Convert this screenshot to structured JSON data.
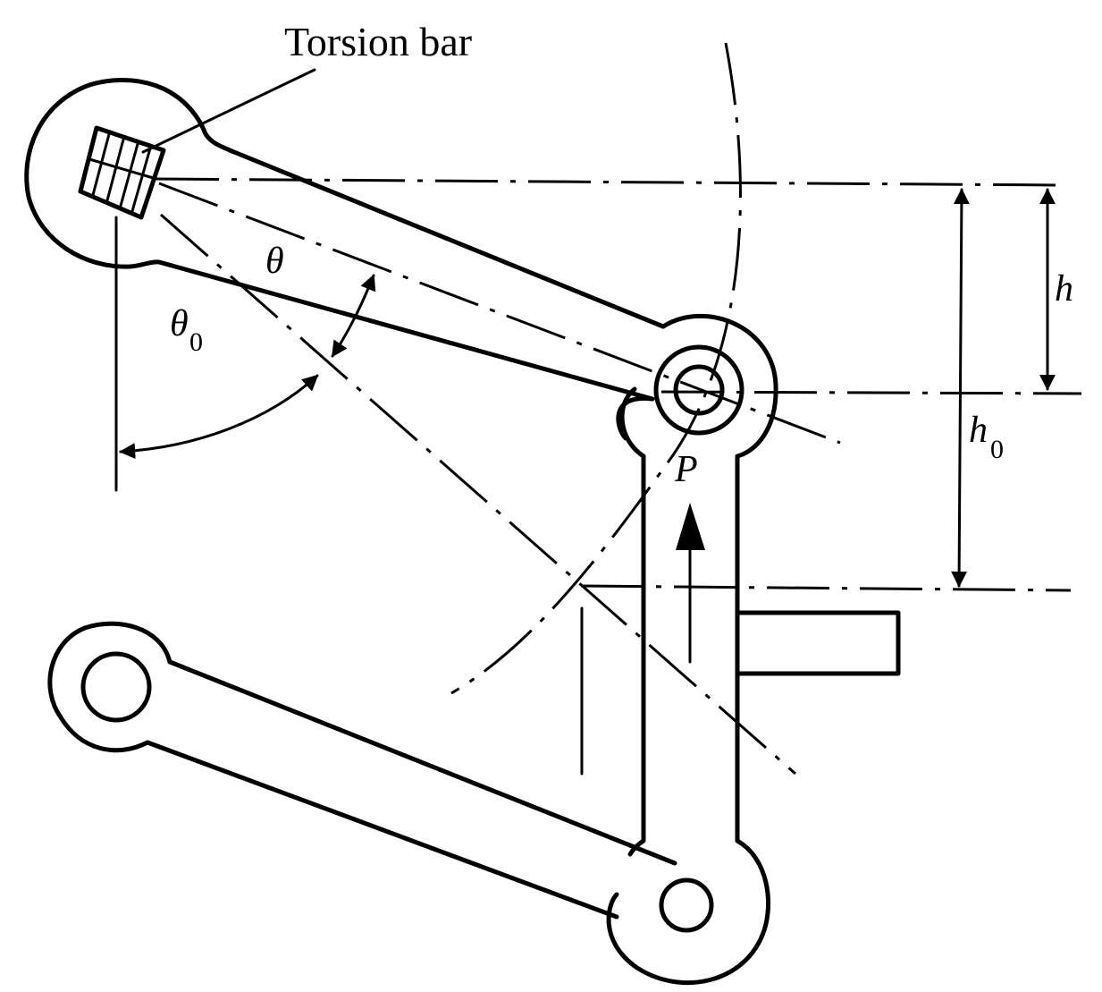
{
  "labels": {
    "torsion_bar": "Torsion bar",
    "theta": "θ",
    "theta0_symbol": "θ",
    "theta0_subscript": "0",
    "h": "h",
    "h0_symbol": "h",
    "h0_subscript": "0",
    "force": "P"
  }
}
